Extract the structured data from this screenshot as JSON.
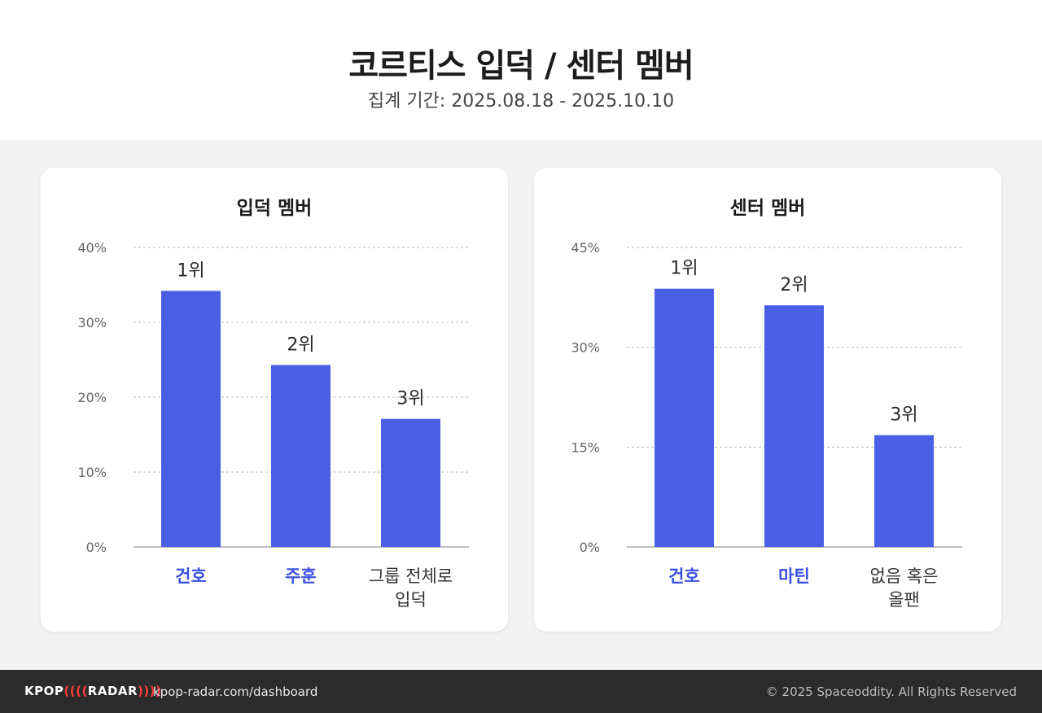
{
  "header": {
    "title": "코르티스 입덕 / 센터 멤버",
    "subtitle": "집계 기간: 2025.08.18 - 2025.10.10"
  },
  "colors": {
    "bar": "#4a5fe6",
    "highlight_label": "#3a50e0",
    "normal_label": "#333333",
    "grid": "#b8b8b8",
    "tick": "#666666"
  },
  "chart_data": [
    {
      "type": "bar",
      "title": "입덕 멤버",
      "categories": [
        {
          "lines": [
            "건호"
          ],
          "highlight": true
        },
        {
          "lines": [
            "주훈"
          ],
          "highlight": true
        },
        {
          "lines": [
            "그룹 전체로",
            "입덕"
          ],
          "highlight": false
        }
      ],
      "values": [
        34.2,
        24.3,
        17.1
      ],
      "bar_labels": [
        "1위",
        "2위",
        "3위"
      ],
      "ylim": [
        0,
        40
      ],
      "yticks": [
        0,
        10,
        20,
        30,
        40
      ],
      "ytick_labels": [
        "0%",
        "10%",
        "20%",
        "30%",
        "40%"
      ],
      "grid": true
    },
    {
      "type": "bar",
      "title": "센터 멤버",
      "categories": [
        {
          "lines": [
            "건호"
          ],
          "highlight": true
        },
        {
          "lines": [
            "마틴"
          ],
          "highlight": true
        },
        {
          "lines": [
            "없음 혹은",
            "올팬"
          ],
          "highlight": false
        }
      ],
      "values": [
        38.8,
        36.3,
        16.8
      ],
      "bar_labels": [
        "1위",
        "2위",
        "3위"
      ],
      "ylim": [
        0,
        45
      ],
      "yticks": [
        0,
        15,
        30,
        45
      ],
      "ytick_labels": [
        "0%",
        "15%",
        "30%",
        "45%"
      ],
      "grid": true
    }
  ],
  "footer": {
    "logo_left": "KPOP",
    "logo_wave_left": "((((",
    "logo_right": "RADAR",
    "logo_wave_right": "))))",
    "url": "kpop-radar.com/dashboard",
    "copyright": "© 2025 Spaceoddity. All Rights Reserved"
  }
}
